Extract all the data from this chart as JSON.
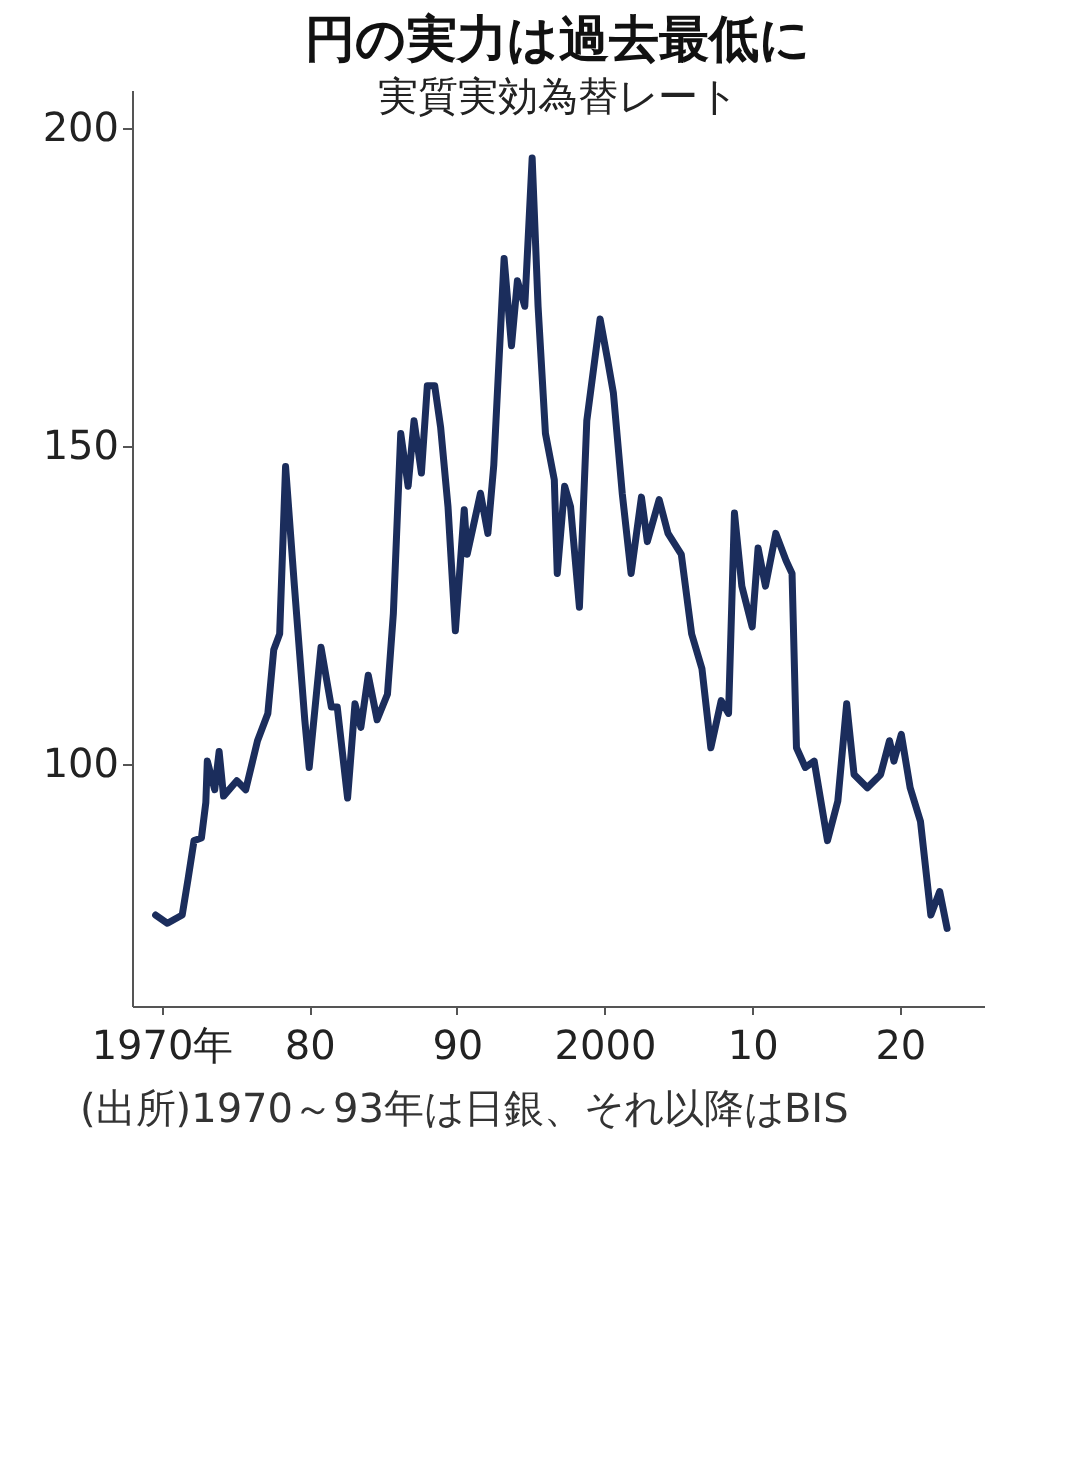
{
  "chart_data": {
    "type": "line",
    "title": "円の実力は過去最低に",
    "subtitle": "実質実効為替レート",
    "annotations": [
      "(出所)1970～93年は日銀、それ以降はBIS"
    ],
    "x": [
      1969.6,
      1970.4,
      1971.4,
      1971.8,
      1972.2,
      1972.7,
      1973.0,
      1973.1,
      1973.6,
      1973.9,
      1974.2,
      1975.1,
      1975.7,
      1976.5,
      1977.2,
      1977.6,
      1978.0,
      1978.4,
      1979.0,
      1979.7,
      1980.0,
      1980.8,
      1981.5,
      1981.9,
      1982.6,
      1983.1,
      1983.5,
      1984.0,
      1984.6,
      1985.3,
      1985.7,
      1986.2,
      1986.7,
      1987.1,
      1987.6,
      1988.0,
      1988.5,
      1988.9,
      1989.4,
      1989.9,
      1990.5,
      1990.7,
      1991.6,
      1992.1,
      1992.5,
      1993.2,
      1993.7,
      1994.1,
      1994.6,
      1995.1,
      1995.5,
      1996.0,
      1996.6,
      1996.8,
      1997.3,
      1997.7,
      1998.3,
      1998.8,
      1999.7,
      2000.2,
      2000.6,
      2001.2,
      2001.8,
      2002.5,
      2002.9,
      2003.7,
      2004.3,
      2005.2,
      2005.9,
      2006.6,
      2007.2,
      2007.9,
      2008.4,
      2008.8,
      2009.3,
      2010.0,
      2010.4,
      2010.9,
      2011.6,
      2012.3,
      2012.7,
      2013.0,
      2013.6,
      2014.2,
      2015.1,
      2015.8,
      2016.4,
      2016.9,
      2017.8,
      2018.7,
      2019.3,
      2019.6,
      2020.1,
      2020.7,
      2021.4,
      2022.1,
      2022.7,
      2023.2
    ],
    "series": [
      {
        "color": "#1b2d5c",
        "values": [
          76.3,
          75,
          76.3,
          82,
          88,
          88.4,
          94,
          100.5,
          96,
          102,
          95,
          97.4,
          96,
          103.7,
          108,
          118,
          120.5,
          146.8,
          128,
          107,
          99.5,
          118.4,
          109,
          109,
          94.7,
          109.5,
          105.8,
          114,
          107,
          111,
          123.7,
          152,
          143.7,
          154,
          145.8,
          159.5,
          159.5,
          153,
          140.5,
          121,
          140,
          133,
          142.6,
          136.3,
          147,
          179.5,
          165.8,
          176,
          172,
          195.3,
          172,
          152,
          144.7,
          130,
          143.7,
          140.5,
          124.7,
          154,
          170,
          163.7,
          158.4,
          142.6,
          130,
          142,
          135,
          141.6,
          136.3,
          133,
          120.5,
          115,
          102.6,
          110,
          108,
          139.5,
          128,
          121.6,
          134,
          128,
          136.3,
          132,
          130,
          102.6,
          99.5,
          100.5,
          88,
          94.2,
          109.5,
          98.4,
          96.3,
          98.4,
          103.7,
          100.5,
          104.7,
          96.3,
          91,
          76.3,
          80,
          74.2
        ]
      }
    ],
    "xlim": [
      1968,
      2025.7
    ],
    "ylim": [
      62,
      206
    ],
    "xticks": [
      {
        "value": 1970,
        "label": "1970年"
      },
      {
        "value": 1980,
        "label": "80"
      },
      {
        "value": 1990,
        "label": "90"
      },
      2000,
      {
        "value": 2010,
        "label": "10"
      },
      {
        "value": 2020,
        "label": "20"
      }
    ],
    "yticks": [
      100,
      150,
      200
    ],
    "grid": false,
    "legend": false,
    "marker": "none",
    "line_style": "solid"
  }
}
